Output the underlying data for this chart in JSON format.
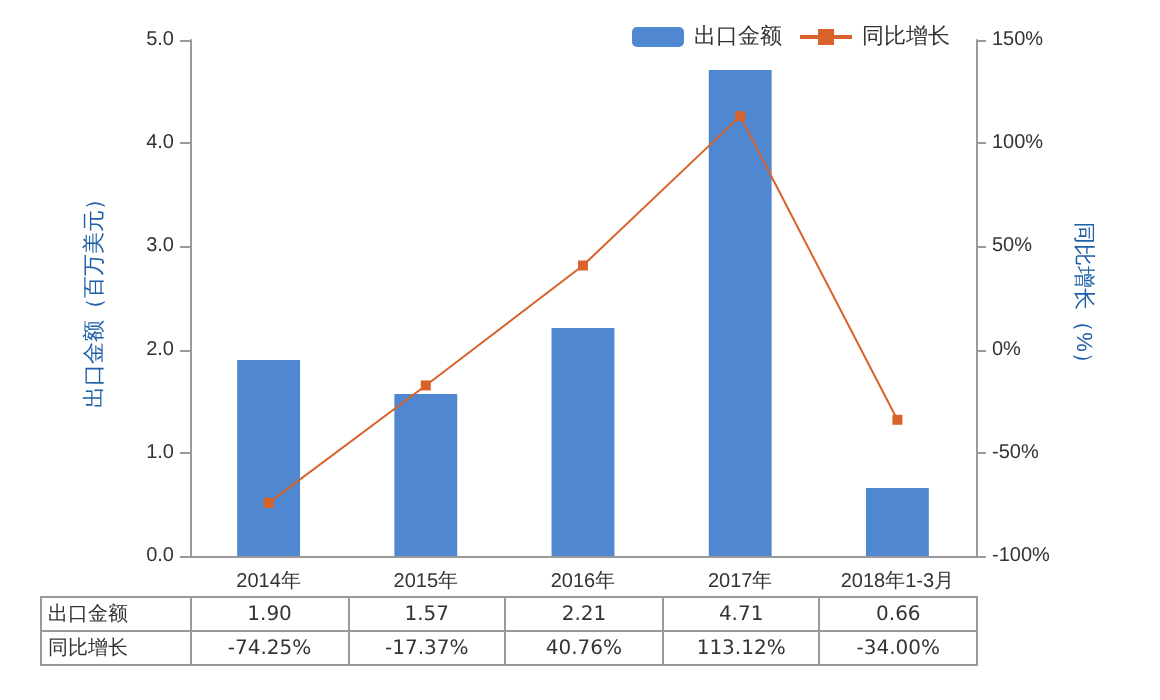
{
  "chart_data": {
    "type": "bar",
    "categories": [
      "2014年",
      "2015年",
      "2016年",
      "2017年",
      "2018年1-3月"
    ],
    "ylabel": "出口金额（百万美元）",
    "y2label": "同比增长（%）",
    "ylim": [
      0,
      5
    ],
    "yticks": [
      {
        "value": 0,
        "label": "0.0"
      },
      {
        "value": 1,
        "label": "1.0"
      },
      {
        "value": 2,
        "label": "2.0"
      },
      {
        "value": 3,
        "label": "3.0"
      },
      {
        "value": 4,
        "label": "4.0"
      },
      {
        "value": 5,
        "label": "5.0"
      }
    ],
    "y2lim": [
      -100,
      150
    ],
    "y2ticks": [
      {
        "value": -100,
        "label": "-100%"
      },
      {
        "value": -50,
        "label": "-50%"
      },
      {
        "value": 0,
        "label": "0%"
      },
      {
        "value": 50,
        "label": "50%"
      },
      {
        "value": 100,
        "label": "100%"
      },
      {
        "value": 150,
        "label": "150%"
      }
    ],
    "series": [
      {
        "name": "出口金额",
        "color": "#4f87d1",
        "values": [
          1.9,
          1.57,
          2.21,
          4.71,
          0.66
        ],
        "value_labels": [
          "1.90",
          "1.57",
          "2.21",
          "4.71",
          "0.66"
        ]
      },
      {
        "name": "同比增长",
        "type": "line",
        "axis": "y2",
        "color": "#d9622b",
        "values": [
          -74.25,
          -17.37,
          40.76,
          113.12,
          -34.0
        ],
        "value_labels": [
          "-74.25%",
          "-17.37%",
          "40.76%",
          "113.12%",
          "-34.00%"
        ]
      }
    ],
    "legend": "top right",
    "marker": "square",
    "grid": false
  }
}
